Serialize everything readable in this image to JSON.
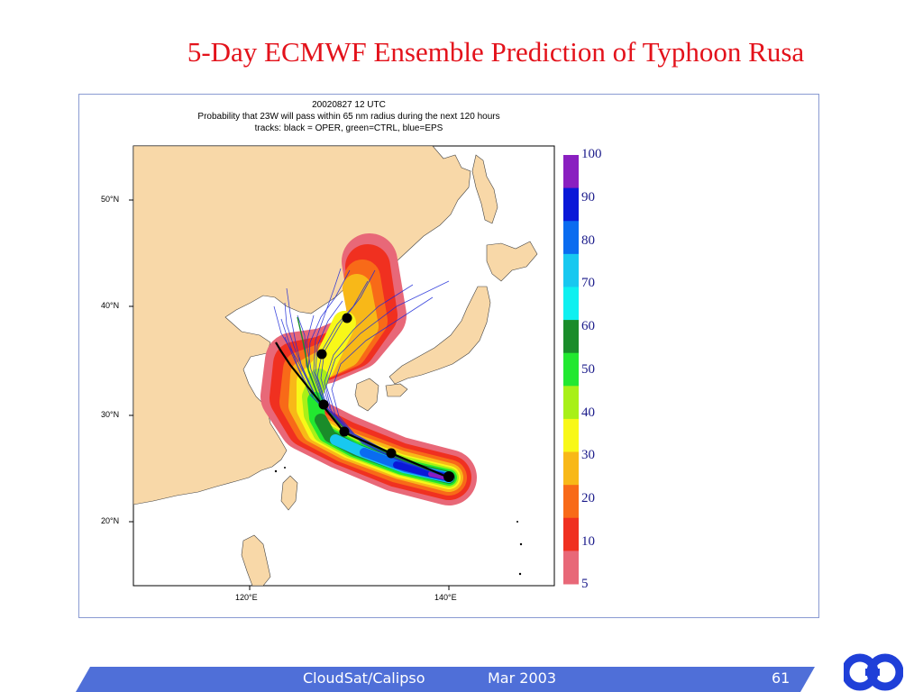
{
  "slide": {
    "title": "5-Day ECMWF Ensemble Prediction of Typhoon Rusa",
    "footer_text": "CloudSat/Calipso",
    "footer_date": "Mar 2003",
    "page_number": "61"
  },
  "figure": {
    "date_line": "20020827 12 UTC",
    "description": "Probability that 23W will pass within 65 nm radius during the next 120 hours",
    "legend_line": "tracks: black = OPER, green=CTRL, blue=EPS",
    "lat_labels": [
      "50°N",
      "40°N",
      "30°N",
      "20°N"
    ],
    "lon_labels": [
      "120°E",
      "140°E"
    ],
    "colorbar": {
      "labels": [
        "100",
        "90",
        "80",
        "70",
        "60",
        "50",
        "40",
        "30",
        "20",
        "10",
        "5"
      ],
      "colors": [
        "#8a1fc0",
        "#0a18d8",
        "#0a6cf0",
        "#18c8f0",
        "#0ff0f0",
        "#1a8c2a",
        "#22e830",
        "#a8f018",
        "#f8f818",
        "#f8b818",
        "#f86a18",
        "#f03020",
        "#e86878"
      ]
    },
    "track_colors": {
      "oper": "#000000",
      "ctrl": "#1a8c2a",
      "eps": "#1d2ad8"
    }
  },
  "colors": {
    "title": "#e3121b",
    "land": "#f8d8a8",
    "frame_border": "#8a9bd2",
    "footer_bar": "#4f6fd8"
  }
}
